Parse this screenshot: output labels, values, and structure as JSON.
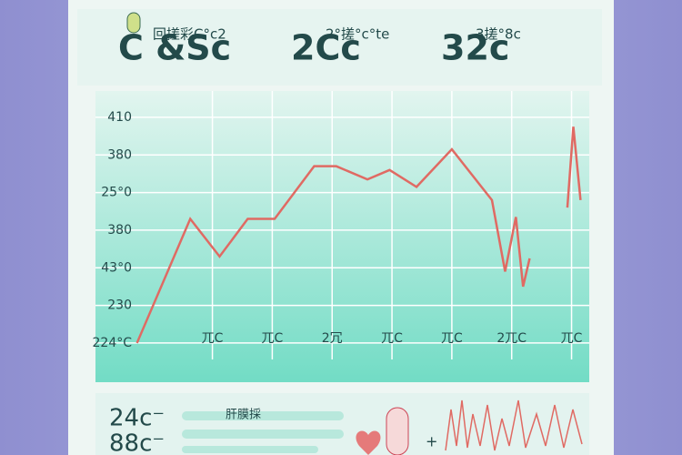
{
  "header": {
    "items": [
      {
        "big": "C &Sc",
        "small": "回搓彩C°c2"
      },
      {
        "big": "2Cc",
        "small": "2°搓°c°te"
      },
      {
        "big": "32c",
        "small": "3搓°8c"
      }
    ]
  },
  "chart_data": {
    "type": "line",
    "x": [
      -0.26,
      0.63,
      1.12,
      1.59,
      2.04,
      2.7,
      3.07,
      3.59,
      3.96,
      4.41,
      5.0,
      5.67,
      5.89,
      6.07,
      6.19,
      6.3,
      6.6,
      6.93,
      7.03,
      7.15
    ],
    "series": [
      {
        "color": "#e06a63",
        "values": [
          0,
          3.3,
          2.3,
          3.3,
          3.3,
          4.7,
          4.7,
          4.35,
          4.6,
          4.15,
          5.15,
          3.8,
          1.9,
          3.35,
          1.5,
          2.25,
          null,
          3.6,
          5.75,
          3.8
        ]
      }
    ],
    "xlim": [
      -0.3,
      7.25
    ],
    "xticks": [
      {
        "value": 1,
        "label": "兀C"
      },
      {
        "value": 2,
        "label": "兀C"
      },
      {
        "value": 3,
        "label": "2冗"
      },
      {
        "value": 4,
        "label": "兀C"
      },
      {
        "value": 5,
        "label": "兀C"
      },
      {
        "value": 6,
        "label": "2兀C"
      },
      {
        "value": 7,
        "label": "兀C"
      }
    ],
    "ylim": [
      -0.8,
      6.7
    ],
    "yticks": [
      {
        "value": 6,
        "label": "410"
      },
      {
        "value": 5,
        "label": "380"
      },
      {
        "value": 4,
        "label": "25°0"
      },
      {
        "value": 3,
        "label": "380"
      },
      {
        "value": 2,
        "label": "43°0"
      },
      {
        "value": 1,
        "label": "230"
      },
      {
        "value": 0,
        "label": "224°C"
      }
    ],
    "grid": true
  },
  "footer": {
    "readings": [
      "24c⁻",
      "88c⁻"
    ],
    "bar_label": "肝膜採",
    "plus": "+"
  }
}
